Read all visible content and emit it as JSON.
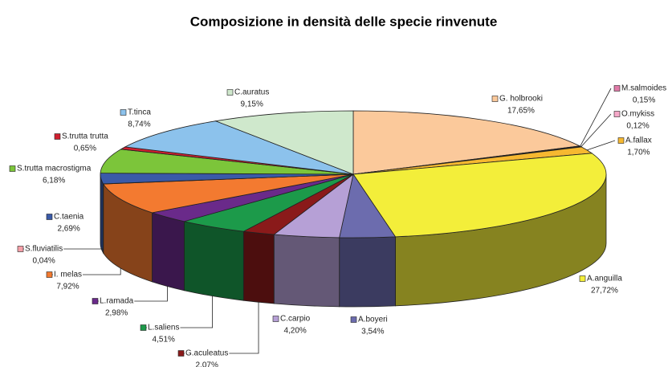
{
  "chart_data": {
    "type": "pie3d",
    "title": "Composizione in densità delle specie rinvenute",
    "categories": [
      "G. holbrooki",
      "M.salmoides",
      "O.mykiss",
      "A.fallax",
      "A.anguilla",
      "A.boyeri",
      "C.carpio",
      "G.aculeatus",
      "L.saliens",
      "L.ramada",
      "I. melas",
      "S.fluviatilis",
      "C.taenia",
      "S.trutta macrostigma",
      "S.trutta trutta",
      "T.tinca",
      "C.auratus"
    ],
    "values": [
      17.65,
      0.15,
      0.12,
      1.7,
      27.72,
      3.54,
      4.2,
      2.07,
      4.51,
      2.98,
      7.92,
      0.04,
      2.69,
      6.18,
      0.65,
      8.74,
      9.15
    ],
    "value_labels": [
      "17,65%",
      "0,15%",
      "0,12%",
      "1,70%",
      "27,72%",
      "3,54%",
      "4,20%",
      "2,07%",
      "4,51%",
      "2,98%",
      "7,92%",
      "0,04%",
      "2,69%",
      "6,18%",
      "0,65%",
      "8,74%",
      "9,15%"
    ],
    "colors": [
      "#fbc99b",
      "#e07aa8",
      "#f5a8c8",
      "#f6b830",
      "#f3ee3a",
      "#6c6cae",
      "#b6a0d6",
      "#8a1a1a",
      "#1c9a4a",
      "#6a2a8a",
      "#f37a30",
      "#f6a0a8",
      "#3a5aa8",
      "#7cc53a",
      "#d02030",
      "#8cc2ec",
      "#cfe8cc"
    ]
  }
}
